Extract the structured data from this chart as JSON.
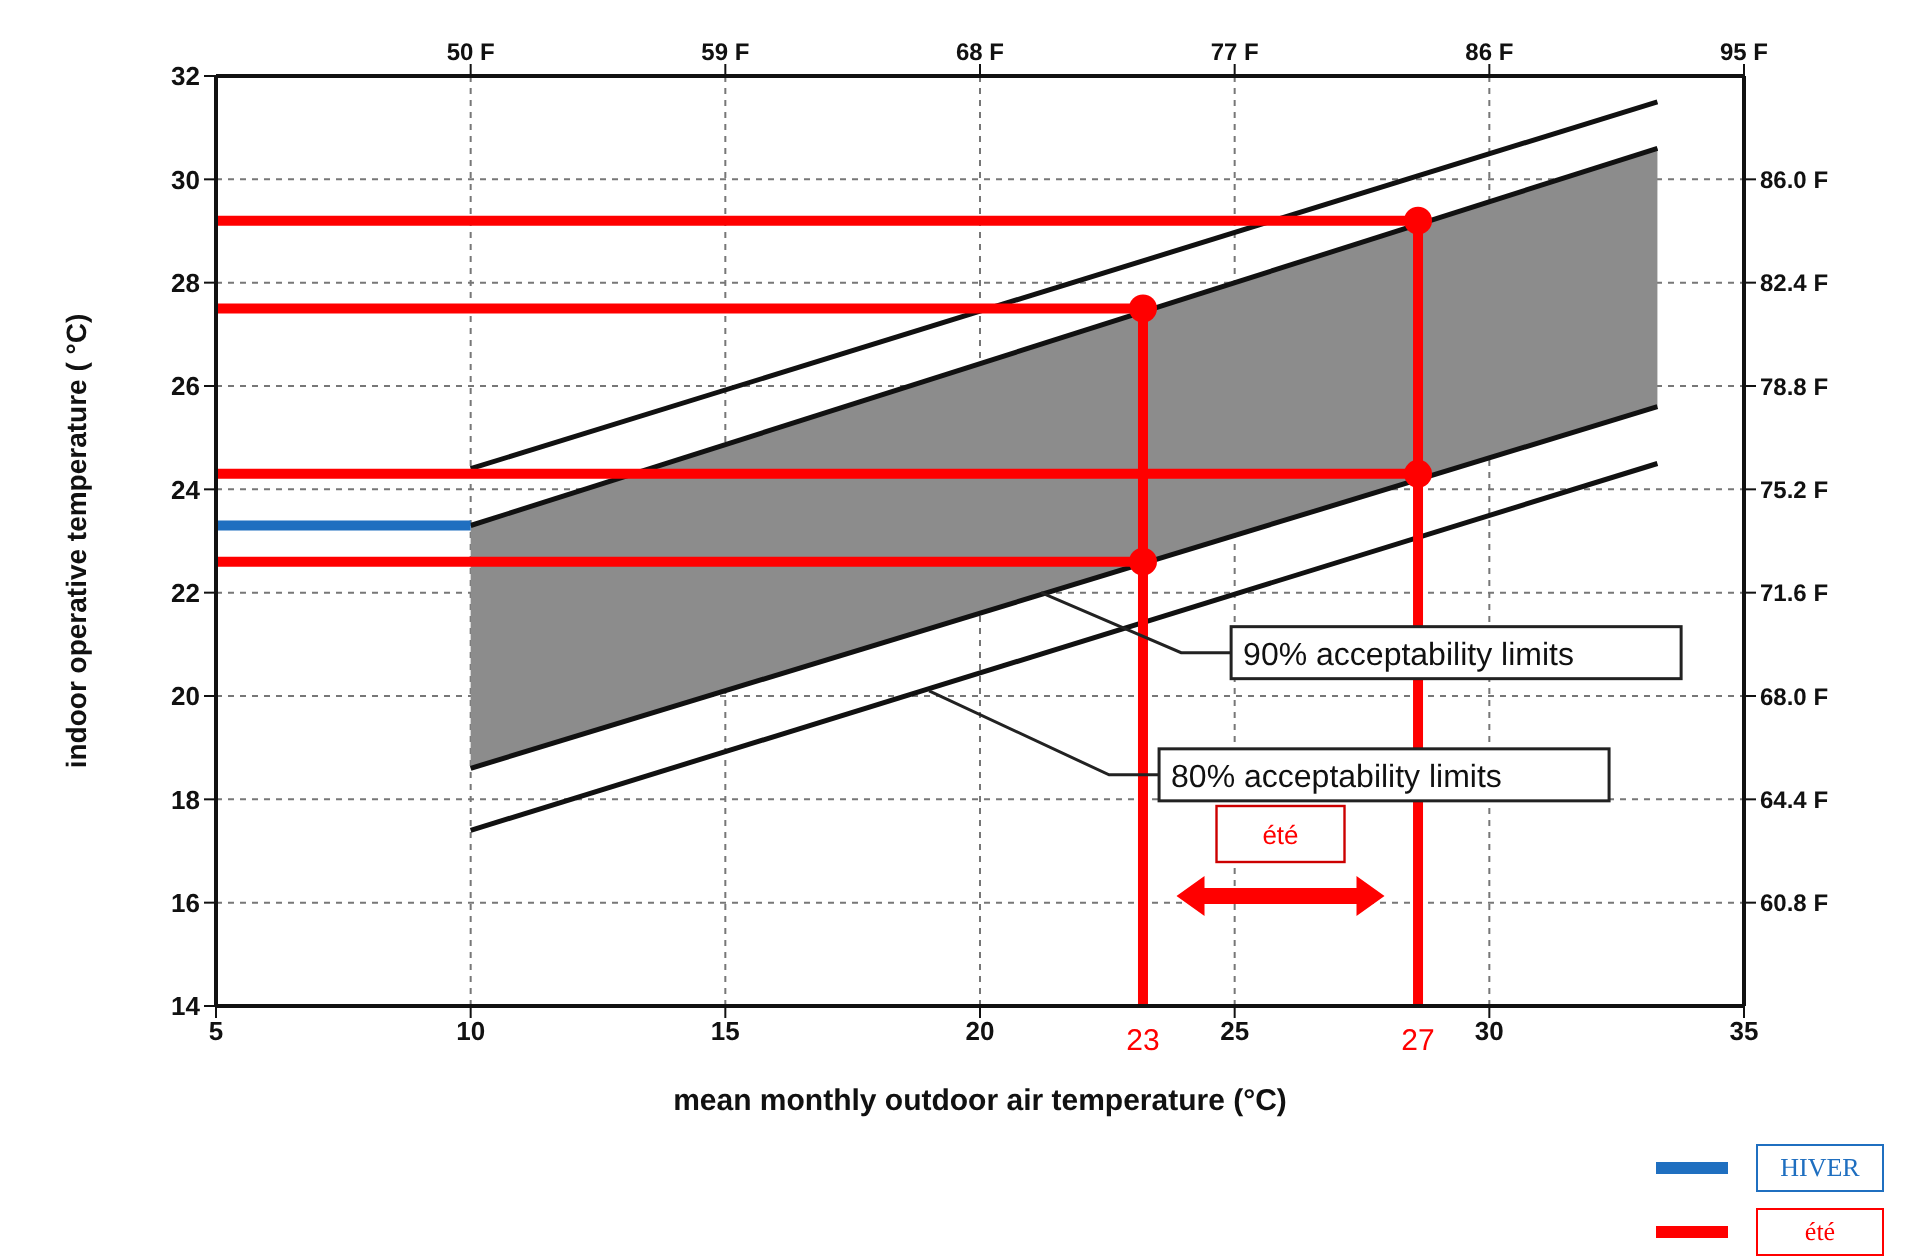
{
  "chart_data": {
    "type": "line",
    "xlabel": "mean monthly outdoor air temperature (°C)",
    "ylabel": "indoor operative temperature ( °C)",
    "xlim": [
      5,
      35
    ],
    "xticks": [
      5,
      10,
      15,
      20,
      25,
      30,
      35
    ],
    "ylim": [
      14,
      32
    ],
    "yticks": [
      14,
      16,
      18,
      20,
      22,
      24,
      26,
      28,
      30,
      32
    ],
    "x2lim": [
      41,
      95
    ],
    "x2ticks": [
      {
        "value": 50,
        "label": "50 F"
      },
      {
        "value": 59,
        "label": "59 F"
      },
      {
        "value": 68,
        "label": "68 F"
      },
      {
        "value": 77,
        "label": "77 F"
      },
      {
        "value": 86,
        "label": "86 F"
      },
      {
        "value": 95,
        "label": "95 F"
      }
    ],
    "y2lim": [
      57.2,
      89.6
    ],
    "y2ticks": [
      {
        "value": 60.8,
        "label": "60.8 F"
      },
      {
        "value": 64.4,
        "label": "64.4 F"
      },
      {
        "value": 68,
        "label": "68.0 F"
      },
      {
        "value": 71.6,
        "label": "71.6 F"
      },
      {
        "value": 75.2,
        "label": "75.2 F"
      },
      {
        "value": 78.8,
        "label": "78.8 F"
      },
      {
        "value": 82.4,
        "label": "82.4 F"
      },
      {
        "value": 86,
        "label": "86.0 F"
      }
    ],
    "grid": true,
    "legend": "bottom right",
    "marker": "none",
    "series": [
      {
        "type": "area",
        "color": "#8c8c8c",
        "x": [
          10,
          33.3
        ],
        "values": [
          23.3,
          30.6
        ]
      },
      {
        "color": "#111111",
        "x": [
          10,
          33.3
        ],
        "values": [
          18.6,
          25.6
        ]
      },
      {
        "color": "#111111",
        "x": [
          10,
          33.3
        ],
        "values": [
          24.4,
          31.5
        ]
      },
      {
        "color": "#111111",
        "x": [
          10,
          33.3
        ],
        "values": [
          17.4,
          24.5
        ]
      },
      {
        "name": "HIVER",
        "color": "#1f6fc0",
        "x": [
          5,
          10
        ],
        "values": [
          23.3,
          23.3
        ]
      },
      {
        "name": "été",
        "color": "#ff0000",
        "x": [
          5,
          28.6
        ],
        "values": [
          29.2,
          29.2
        ]
      },
      {
        "color": "#ff0000",
        "x": [
          5,
          23.2
        ],
        "values": [
          27.5,
          27.5
        ]
      },
      {
        "color": "#ff0000",
        "x": [
          5,
          28.6
        ],
        "values": [
          24.3,
          24.3
        ]
      },
      {
        "color": "#ff0000",
        "x": [
          5,
          23.2
        ],
        "values": [
          22.6,
          22.6
        ]
      },
      {
        "color": "#ff0000",
        "x": [
          23.2,
          23.2
        ],
        "values": [
          14,
          27.5
        ]
      },
      {
        "color": "#ff0000",
        "x": [
          28.6,
          28.6
        ],
        "values": [
          14,
          29.2
        ]
      },
      {
        "type": "scatter",
        "color": "#ff0000",
        "marker": "circle",
        "x": [
          23.2,
          23.2,
          28.6,
          28.6
        ],
        "values": [
          27.5,
          22.6,
          29.2,
          24.3
        ]
      }
    ],
    "annotations": [
      {
        "text": "90% acceptability limits",
        "x": 21.2,
        "y": 22.0
      },
      {
        "text": "80% acceptability limits",
        "x": 19.0,
        "y": 20.1
      },
      "été",
      {
        "text": "23",
        "x": 23.2,
        "y": 14
      },
      {
        "text": "27",
        "x": 28.6,
        "y": 14
      }
    ]
  }
}
